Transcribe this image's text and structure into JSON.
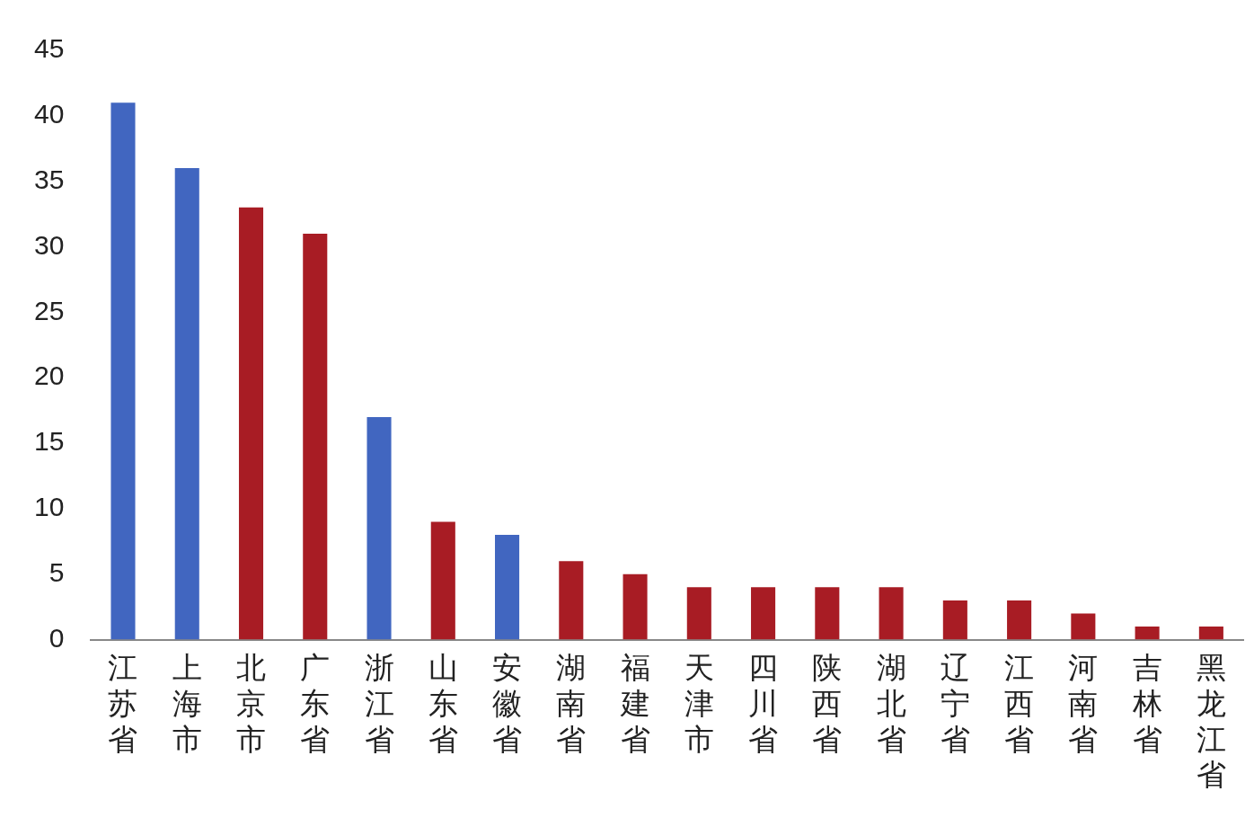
{
  "chart_data": {
    "type": "bar",
    "categories": [
      "江苏省",
      "上海市",
      "北京市",
      "广东省",
      "浙江省",
      "山东省",
      "安徽省",
      "湖南省",
      "福建省",
      "天津市",
      "四川省",
      "陕西省",
      "湖北省",
      "辽宁省",
      "江西省",
      "河南省",
      "吉林省",
      "黑龙江省"
    ],
    "values": [
      41,
      36,
      33,
      31,
      17,
      9,
      8,
      6,
      5,
      4,
      4,
      4,
      4,
      3,
      3,
      2,
      1,
      1
    ],
    "colors": [
      "#4166c0",
      "#4166c0",
      "#a81c24",
      "#a81c24",
      "#4166c0",
      "#a81c24",
      "#4166c0",
      "#a81c24",
      "#a81c24",
      "#a81c24",
      "#a81c24",
      "#a81c24",
      "#a81c24",
      "#a81c24",
      "#a81c24",
      "#a81c24",
      "#a81c24",
      "#a81c24"
    ],
    "ylim": [
      0,
      45
    ],
    "yticks": [
      0,
      5,
      10,
      15,
      20,
      25,
      30,
      35,
      40,
      45
    ],
    "grid": false,
    "legend": false
  }
}
